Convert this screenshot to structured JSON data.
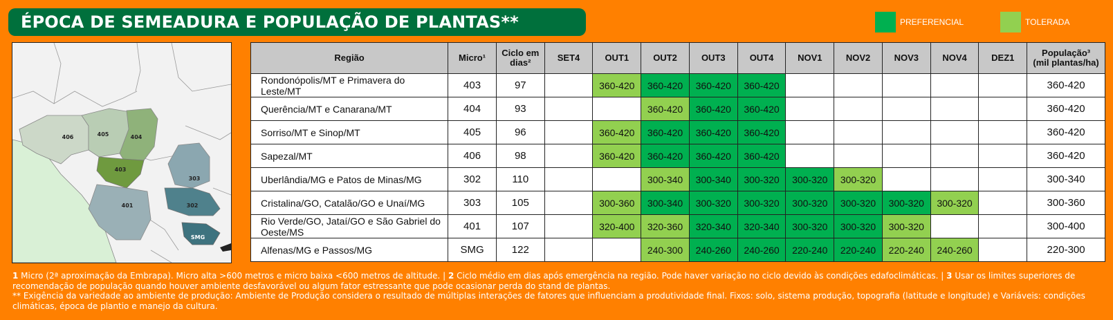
{
  "title": "ÉPOCA DE SEMEADURA E POPULAÇÃO DE PLANTAS**",
  "legend": {
    "preferencial": {
      "label": "PREFERENCIAL",
      "color": "#00b050"
    },
    "tolerada": {
      "label": "TOLERADA",
      "color": "#92d050"
    }
  },
  "map": {
    "labels": [
      "406",
      "405",
      "404",
      "403",
      "401",
      "303",
      "302",
      "SMG"
    ]
  },
  "table": {
    "headers": {
      "regiao": "Região",
      "micro": "Micro¹",
      "ciclo_1": "Ciclo em",
      "ciclo_2": "dias²",
      "months": [
        "SET4",
        "OUT1",
        "OUT2",
        "OUT3",
        "OUT4",
        "NOV1",
        "NOV2",
        "NOV3",
        "NOV4",
        "DEZ1"
      ],
      "pop_1": "População³",
      "pop_2": "(mil plantas/ha)"
    },
    "rows": [
      {
        "region": "Rondonópolis/MT e Primavera do Leste/MT",
        "micro": "403",
        "ciclo": "97",
        "cells": [
          [
            "",
            ""
          ],
          [
            "360-420",
            "tol"
          ],
          [
            "360-420",
            "pref"
          ],
          [
            "360-420",
            "pref"
          ],
          [
            "360-420",
            "pref"
          ],
          [
            "",
            ""
          ],
          [
            "",
            ""
          ],
          [
            "",
            ""
          ],
          [
            "",
            ""
          ],
          [
            "",
            ""
          ]
        ],
        "populacao": "360-420"
      },
      {
        "region": "Querência/MT e Canarana/MT",
        "micro": "404",
        "ciclo": "93",
        "cells": [
          [
            "",
            ""
          ],
          [
            "",
            ""
          ],
          [
            "360-420",
            "tol"
          ],
          [
            "360-420",
            "pref"
          ],
          [
            "360-420",
            "pref"
          ],
          [
            "",
            ""
          ],
          [
            "",
            ""
          ],
          [
            "",
            ""
          ],
          [
            "",
            ""
          ],
          [
            "",
            ""
          ]
        ],
        "populacao": "360-420"
      },
      {
        "region": "Sorriso/MT e Sinop/MT",
        "micro": "405",
        "ciclo": "96",
        "cells": [
          [
            "",
            ""
          ],
          [
            "360-420",
            "tol"
          ],
          [
            "360-420",
            "pref"
          ],
          [
            "360-420",
            "pref"
          ],
          [
            "360-420",
            "pref"
          ],
          [
            "",
            ""
          ],
          [
            "",
            ""
          ],
          [
            "",
            ""
          ],
          [
            "",
            ""
          ],
          [
            "",
            ""
          ]
        ],
        "populacao": "360-420"
      },
      {
        "region": "Sapezal/MT",
        "micro": "406",
        "ciclo": "98",
        "cells": [
          [
            "",
            ""
          ],
          [
            "360-420",
            "tol"
          ],
          [
            "360-420",
            "pref"
          ],
          [
            "360-420",
            "pref"
          ],
          [
            "360-420",
            "pref"
          ],
          [
            "",
            ""
          ],
          [
            "",
            ""
          ],
          [
            "",
            ""
          ],
          [
            "",
            ""
          ],
          [
            "",
            ""
          ]
        ],
        "populacao": "360-420"
      },
      {
        "region": "Uberlândia/MG e Patos de Minas/MG",
        "micro": "302",
        "ciclo": "110",
        "cells": [
          [
            "",
            ""
          ],
          [
            "",
            ""
          ],
          [
            "300-340",
            "tol"
          ],
          [
            "300-340",
            "pref"
          ],
          [
            "300-320",
            "pref"
          ],
          [
            "300-320",
            "pref"
          ],
          [
            "300-320",
            "tol"
          ],
          [
            "",
            ""
          ],
          [
            "",
            ""
          ],
          [
            "",
            ""
          ]
        ],
        "populacao": "300-340"
      },
      {
        "region": "Cristalina/GO, Catalão/GO e Unaí/MG",
        "micro": "303",
        "ciclo": "105",
        "cells": [
          [
            "",
            ""
          ],
          [
            "300-360",
            "tol"
          ],
          [
            "300-340",
            "pref"
          ],
          [
            "300-320",
            "pref"
          ],
          [
            "300-320",
            "pref"
          ],
          [
            "300-320",
            "pref"
          ],
          [
            "300-320",
            "pref"
          ],
          [
            "300-320",
            "pref"
          ],
          [
            "300-320",
            "tol"
          ],
          [
            "",
            ""
          ]
        ],
        "populacao": "300-360"
      },
      {
        "region": "Rio Verde/GO, Jataí/GO e São Gabriel do Oeste/MS",
        "micro": "401",
        "ciclo": "107",
        "cells": [
          [
            "",
            ""
          ],
          [
            "320-400",
            "tol"
          ],
          [
            "320-360",
            "tol"
          ],
          [
            "320-340",
            "pref"
          ],
          [
            "320-340",
            "pref"
          ],
          [
            "300-320",
            "pref"
          ],
          [
            "300-320",
            "pref"
          ],
          [
            "300-320",
            "tol"
          ],
          [
            "",
            ""
          ],
          [
            "",
            ""
          ]
        ],
        "populacao": "300-400"
      },
      {
        "region": "Alfenas/MG e Passos/MG",
        "micro": "SMG",
        "ciclo": "122",
        "cells": [
          [
            "",
            ""
          ],
          [
            "",
            ""
          ],
          [
            "240-300",
            "tol"
          ],
          [
            "240-260",
            "pref"
          ],
          [
            "240-260",
            "pref"
          ],
          [
            "220-240",
            "pref"
          ],
          [
            "220-240",
            "pref"
          ],
          [
            "220-240",
            "tol"
          ],
          [
            "240-260",
            "tol"
          ],
          [
            "",
            ""
          ]
        ],
        "populacao": "220-300"
      }
    ]
  },
  "notes": {
    "n1_num": "1",
    "n1_text": " Micro (2ª aproximação da Embrapa). Micro alta >600 metros e micro baixa <600 metros de altitude. | ",
    "n2_num": "2",
    "n2_text": " Ciclo médio em dias após emergência na região. Pode haver variação no ciclo devido às condições edafoclimáticas. | ",
    "n3_num": "3",
    "n3_text": " Usar os limites superiores de recomendação de população quando houver ambiente desfavorável ou algum fator estressante que pode ocasionar perda do stand de plantas.",
    "n4": "** Exigência da variedade ao ambiente de produção: Ambiente de Produção considera o resultado de múltiplas interações de fatores que influenciam a produtividade final. Fixos: solo, sistema produção, topografia (latitude e longitude) e Variáveis: condições climáticas, época de plantio e manejo da cultura."
  }
}
